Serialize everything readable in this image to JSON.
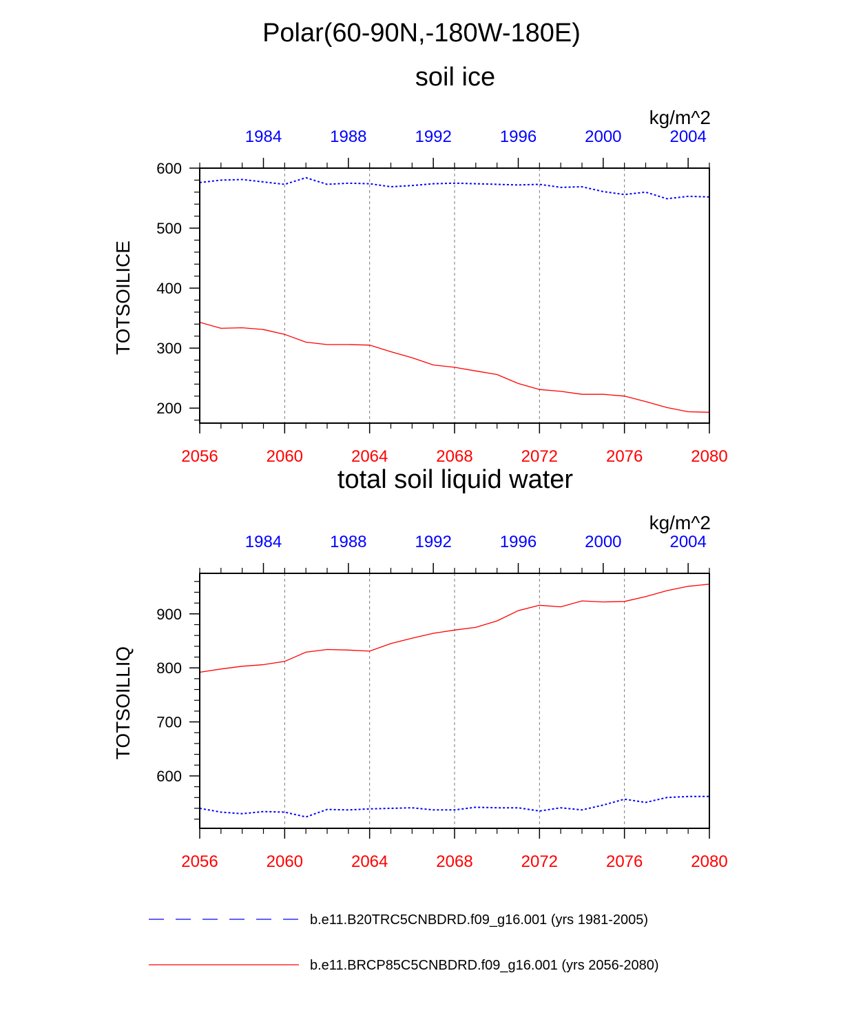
{
  "figure": {
    "title": "Polar(60-90N,-180W-180E)"
  },
  "chart_data": [
    {
      "type": "line",
      "title": "soil ice",
      "units": "kg/m^2",
      "ylabel": "TOTSOILICE",
      "ylim": [
        175,
        600
      ],
      "yticks": [
        200,
        300,
        400,
        500,
        600
      ],
      "yminor_step": 20,
      "xlim": [
        2056,
        2080
      ],
      "xticks": [
        2056,
        2060,
        2064,
        2068,
        2072,
        2076,
        2080
      ],
      "top_xlim": [
        1981,
        2005
      ],
      "top_xticks": [
        1984,
        1988,
        1992,
        1996,
        2000,
        2004
      ],
      "vgrid": [
        2060,
        2064,
        2068,
        2072,
        2076
      ],
      "x": [
        2056,
        2057,
        2058,
        2059,
        2060,
        2061,
        2062,
        2063,
        2064,
        2065,
        2066,
        2067,
        2068,
        2069,
        2070,
        2071,
        2072,
        2073,
        2074,
        2075,
        2076,
        2077,
        2078,
        2079,
        2080
      ],
      "series": [
        {
          "name": "b.e11.B20TRC5CNBDRD.f09_g16.001 (yrs 1981-2005)",
          "color": "#0000ff",
          "style": "dashed",
          "values": [
            576,
            580,
            581,
            577,
            573,
            584,
            573,
            575,
            574,
            569,
            571,
            574,
            575,
            574,
            573,
            572,
            573,
            568,
            569,
            561,
            556,
            560,
            549,
            553,
            552
          ]
        },
        {
          "name": "b.e11.BRCP85C5CNBDRD.f09_g16.001 (yrs 2056-2080)",
          "color": "#ff0000",
          "style": "solid",
          "values": [
            343,
            333,
            334,
            331,
            323,
            310,
            306,
            306,
            305,
            294,
            284,
            272,
            268,
            262,
            256,
            241,
            231,
            228,
            223,
            223,
            220,
            211,
            201,
            194,
            193
          ]
        }
      ]
    },
    {
      "type": "line",
      "title": "total soil liquid water",
      "units": "kg/m^2",
      "ylabel": "TOTSOILLIQ",
      "ylim": [
        503,
        975
      ],
      "yticks": [
        600,
        700,
        800,
        900
      ],
      "yminor_step": 20,
      "xlim": [
        2056,
        2080
      ],
      "xticks": [
        2056,
        2060,
        2064,
        2068,
        2072,
        2076,
        2080
      ],
      "top_xlim": [
        1981,
        2005
      ],
      "top_xticks": [
        1984,
        1988,
        1992,
        1996,
        2000,
        2004
      ],
      "vgrid": [
        2060,
        2064,
        2068,
        2072,
        2076
      ],
      "x": [
        2056,
        2057,
        2058,
        2059,
        2060,
        2061,
        2062,
        2063,
        2064,
        2065,
        2066,
        2067,
        2068,
        2069,
        2070,
        2071,
        2072,
        2073,
        2074,
        2075,
        2076,
        2077,
        2078,
        2079,
        2080
      ],
      "series": [
        {
          "name": "b.e11.B20TRC5CNBDRD.f09_g16.001 (yrs 1981-2005)",
          "color": "#0000ff",
          "style": "dashed",
          "values": [
            540,
            533,
            530,
            534,
            533,
            524,
            538,
            537,
            539,
            540,
            541,
            537,
            537,
            542,
            541,
            541,
            535,
            541,
            537,
            546,
            557,
            551,
            560,
            562,
            562
          ]
        },
        {
          "name": "b.e11.BRCP85C5CNBDRD.f09_g16.001 (yrs 2056-2080)",
          "color": "#ff0000",
          "style": "solid",
          "values": [
            792,
            798,
            803,
            806,
            812,
            829,
            834,
            833,
            831,
            845,
            855,
            864,
            870,
            875,
            887,
            906,
            916,
            913,
            924,
            922,
            923,
            932,
            943,
            951,
            955
          ]
        }
      ]
    }
  ],
  "legend": {
    "placement": "bottom",
    "entries": [
      {
        "label": "b.e11.B20TRC5CNBDRD.f09_g16.001 (yrs 1981-2005)",
        "color": "#0000ff",
        "style": "dashed"
      },
      {
        "label": "b.e11.BRCP85C5CNBDRD.f09_g16.001 (yrs 2056-2080)",
        "color": "#ff0000",
        "style": "solid"
      }
    ]
  }
}
